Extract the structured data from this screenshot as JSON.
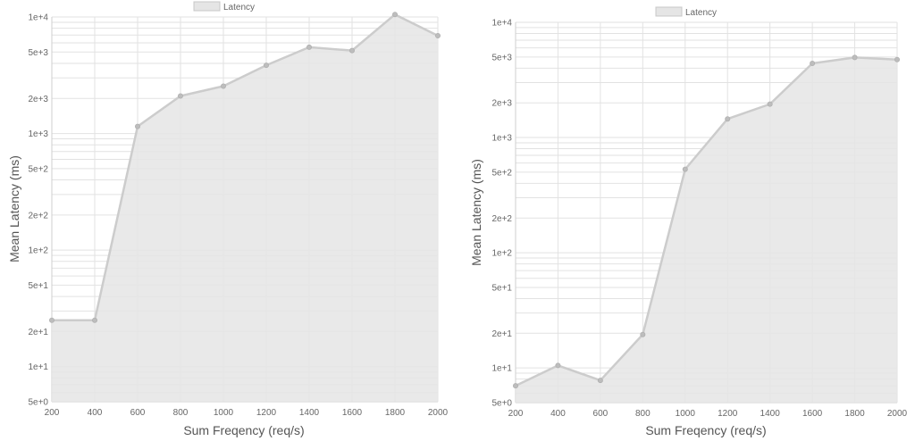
{
  "chart_data": [
    {
      "type": "area",
      "legend": {
        "label": "Latency",
        "position": "top"
      },
      "xlabel": "Sum Freqency (req/s)",
      "ylabel": "Mean Latency (ms)",
      "x": [
        200,
        400,
        600,
        800,
        1000,
        1200,
        1400,
        1600,
        1800,
        2000
      ],
      "x_ticks": [
        "200",
        "400",
        "600",
        "800",
        "1000",
        "1200",
        "1400",
        "1600",
        "1800",
        "2000"
      ],
      "y_scale": "log",
      "ylim": [
        5,
        10000
      ],
      "y_ticks": [
        {
          "value": 5,
          "label": "5e+0"
        },
        {
          "value": 10,
          "label": "1e+1"
        },
        {
          "value": 20,
          "label": "2e+1"
        },
        {
          "value": 50,
          "label": "5e+1"
        },
        {
          "value": 100,
          "label": "1e+2"
        },
        {
          "value": 200,
          "label": "2e+2"
        },
        {
          "value": 500,
          "label": "5e+2"
        },
        {
          "value": 1000,
          "label": "1e+3"
        },
        {
          "value": 2000,
          "label": "2e+3"
        },
        {
          "value": 5000,
          "label": "5e+3"
        },
        {
          "value": 10000,
          "label": "1e+4"
        }
      ],
      "series": [
        {
          "name": "Latency",
          "values": [
            25,
            25,
            1150,
            2100,
            2550,
            3850,
            5500,
            5150,
            10500,
            6900
          ]
        }
      ],
      "grid": true,
      "colors": {
        "fill": "#e5e5e5",
        "line": "#cccccc",
        "point": "#bdbdbd",
        "grid": "#e2e2e2"
      }
    },
    {
      "type": "area",
      "legend": {
        "label": "Latency",
        "position": "top"
      },
      "xlabel": "Sum Freqency (req/s)",
      "ylabel": "Mean Latency (ms)",
      "x": [
        200,
        400,
        600,
        800,
        1000,
        1200,
        1400,
        1600,
        1800,
        2000
      ],
      "x_ticks": [
        "200",
        "400",
        "600",
        "800",
        "1000",
        "1200",
        "1400",
        "1600",
        "1800",
        "2000"
      ],
      "y_scale": "log",
      "ylim": [
        5,
        10000
      ],
      "y_ticks": [
        {
          "value": 5,
          "label": "5e+0"
        },
        {
          "value": 10,
          "label": "1e+1"
        },
        {
          "value": 20,
          "label": "2e+1"
        },
        {
          "value": 50,
          "label": "5e+1"
        },
        {
          "value": 100,
          "label": "1e+2"
        },
        {
          "value": 200,
          "label": "2e+2"
        },
        {
          "value": 500,
          "label": "5e+2"
        },
        {
          "value": 1000,
          "label": "1e+3"
        },
        {
          "value": 2000,
          "label": "2e+3"
        },
        {
          "value": 5000,
          "label": "5e+3"
        },
        {
          "value": 10000,
          "label": "1e+4"
        }
      ],
      "series": [
        {
          "name": "Latency",
          "values": [
            7,
            10.5,
            7.8,
            19.5,
            530,
            1450,
            1950,
            4400,
            4950,
            4750
          ]
        }
      ],
      "grid": true,
      "colors": {
        "fill": "#e5e5e5",
        "line": "#cccccc",
        "point": "#bdbdbd",
        "grid": "#e2e2e2"
      }
    }
  ]
}
